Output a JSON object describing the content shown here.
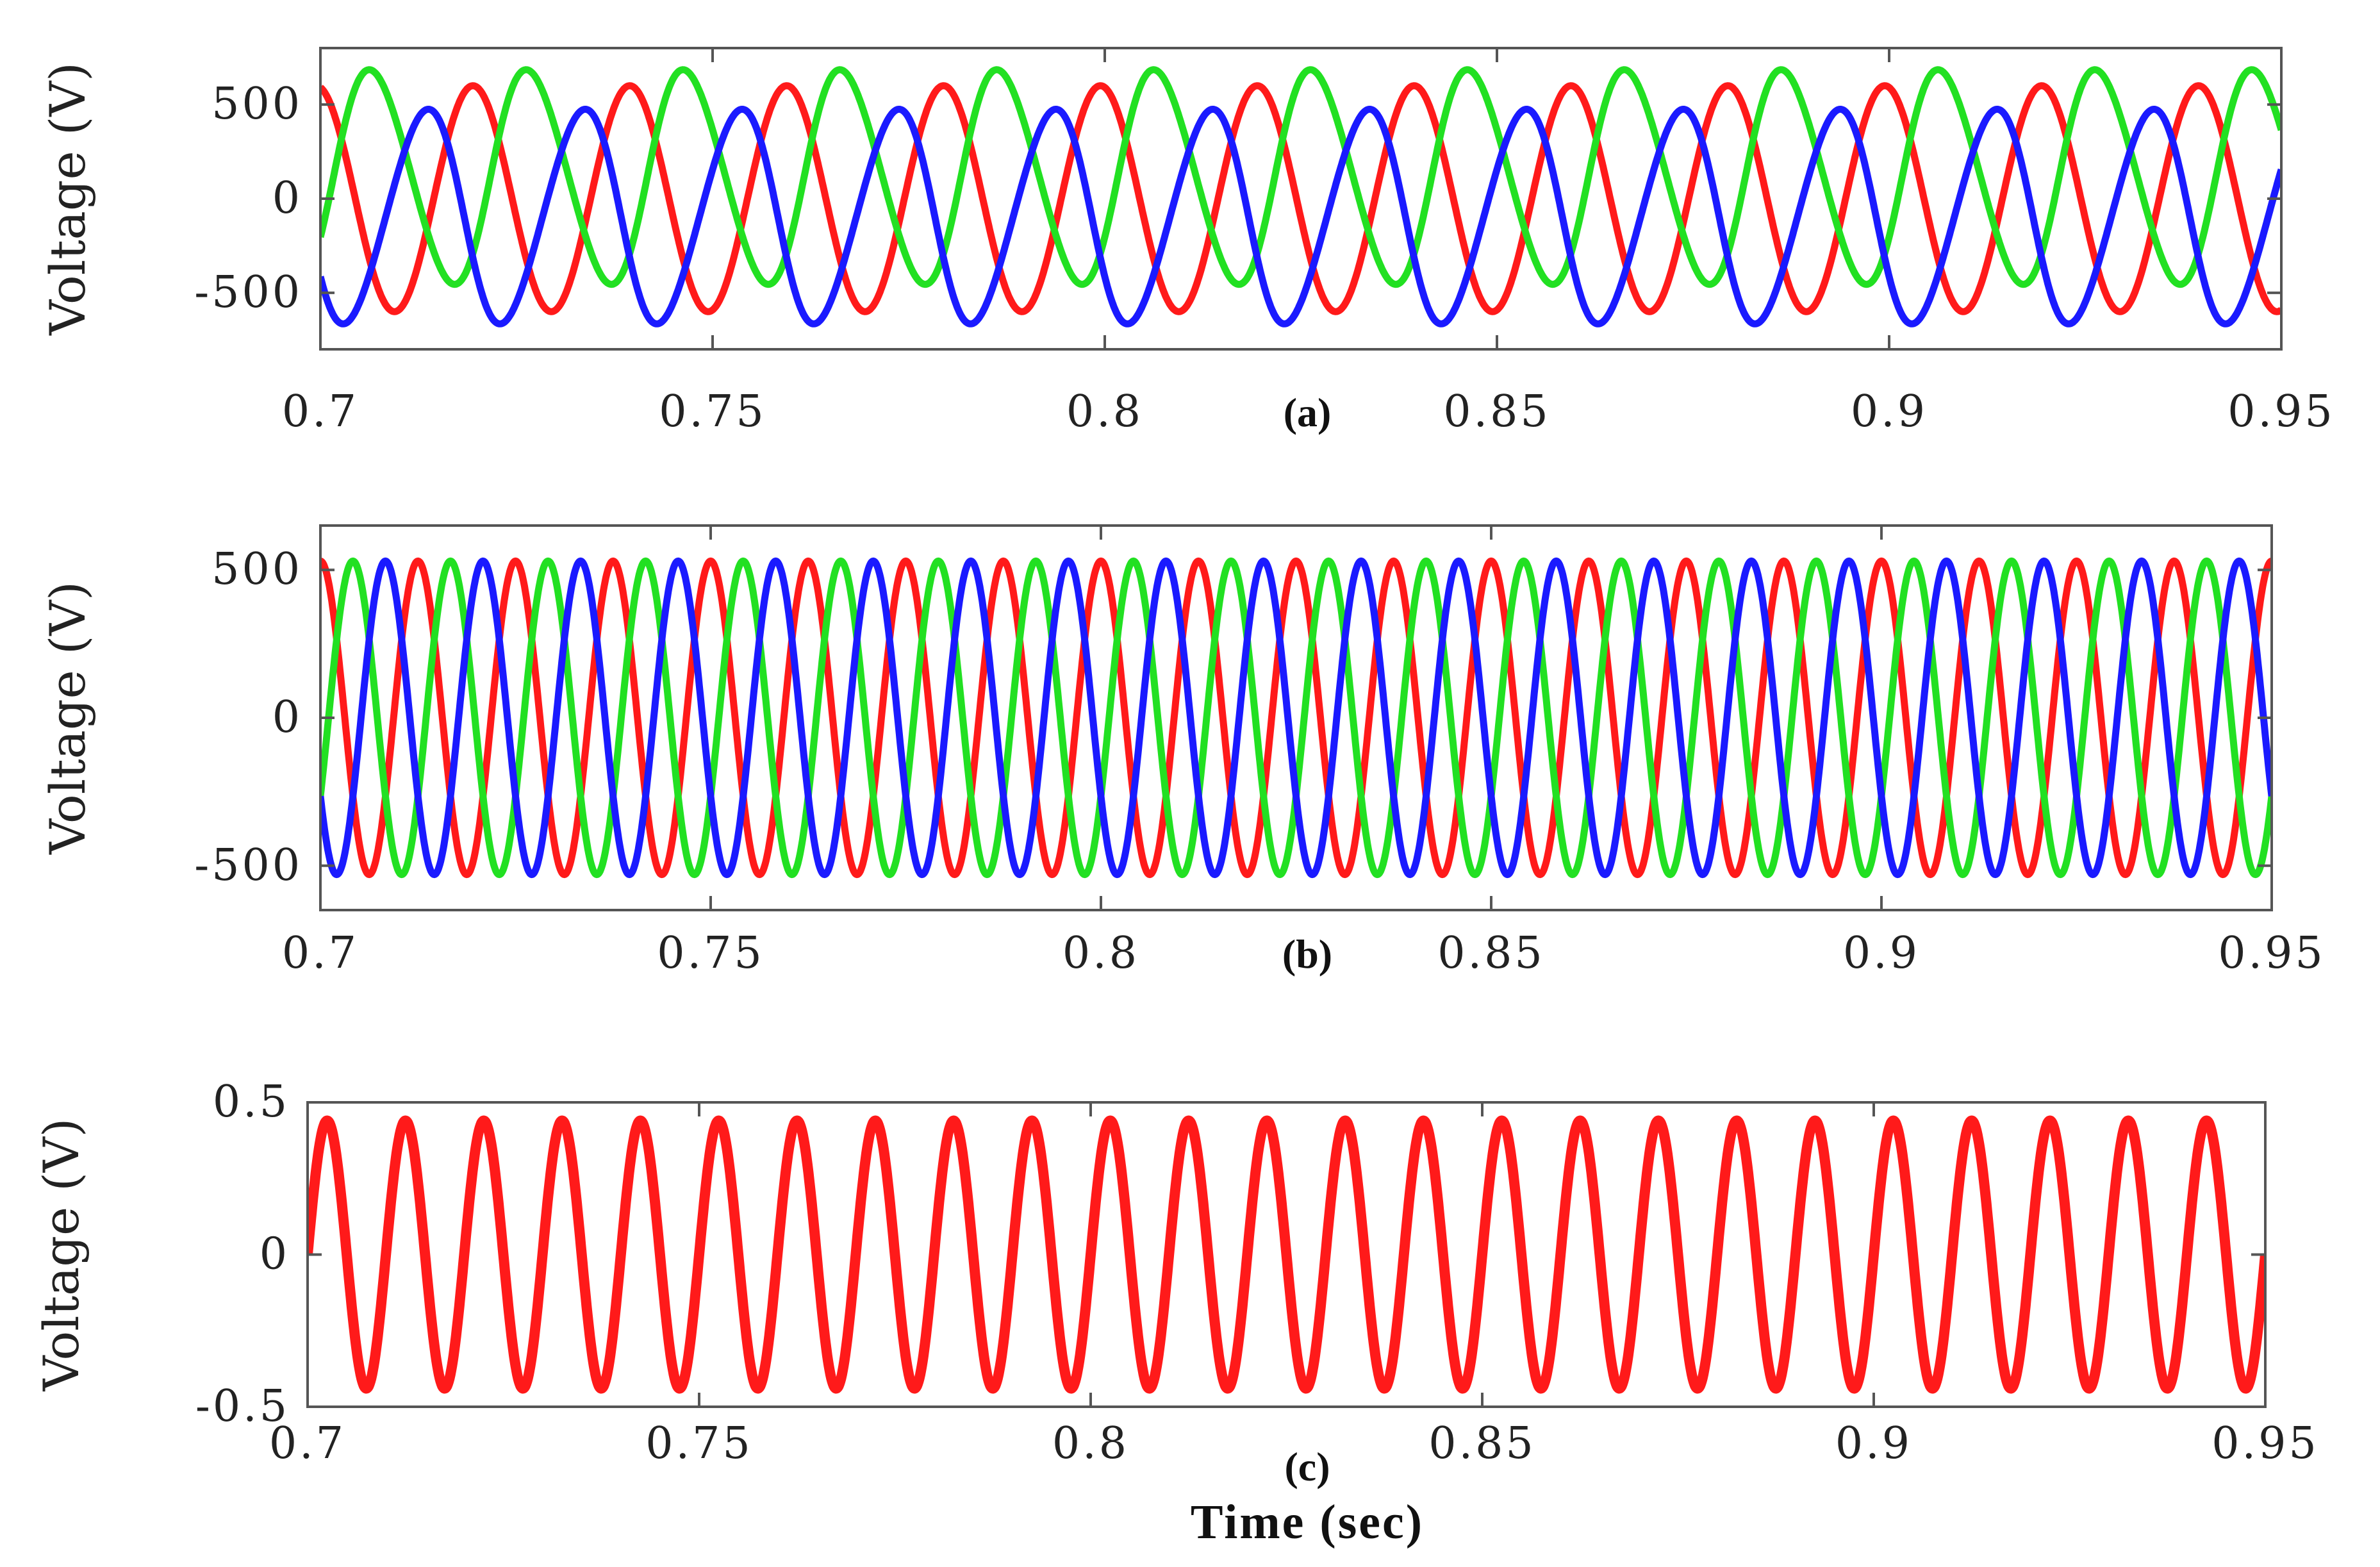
{
  "chart_data": [
    {
      "type": "line",
      "panel_label": "(a)",
      "ylabel": "Voltage (V)",
      "xlabel": "",
      "xlim": [
        0.7,
        0.95
      ],
      "ylim": [
        -800,
        800
      ],
      "x_ticks": [
        "0.7",
        "0.75",
        "0.8",
        "0.85",
        "0.9",
        "0.95"
      ],
      "y_ticks": [
        "500",
        "0",
        "-500"
      ],
      "y_tick_values": [
        500,
        0,
        -500
      ],
      "grid": false,
      "series": [
        {
          "color": "#ff1a1a",
          "kind": "sine",
          "frequency_hz": 50,
          "amplitude": 600,
          "offset": 0,
          "phase_deg": 100
        },
        {
          "color": "#22e022",
          "kind": "sine",
          "frequency_hz": 50,
          "amplitude": 570,
          "offset": 115,
          "phase_deg": -30,
          "distortion": 0.14
        },
        {
          "color": "#1a1aff",
          "kind": "sine",
          "frequency_hz": 50,
          "amplitude": 570,
          "offset": -95,
          "phase_deg": -150,
          "distortion": -0.14
        }
      ]
    },
    {
      "type": "line",
      "panel_label": "(b)",
      "ylabel": "Voltage (V)",
      "xlabel": "",
      "xlim": [
        0.7,
        0.95
      ],
      "ylim": [
        -650,
        650
      ],
      "x_ticks": [
        "0.7",
        "0.75",
        "0.8",
        "0.85",
        "0.9",
        "0.95"
      ],
      "y_ticks": [
        "500",
        "0",
        "-500"
      ],
      "y_tick_values": [
        500,
        0,
        -500
      ],
      "grid": false,
      "series": [
        {
          "color": "#ff1a1a",
          "kind": "sine",
          "frequency_hz": 80,
          "amplitude": 530,
          "offset": 0,
          "phase_deg": 90
        },
        {
          "color": "#22e022",
          "kind": "sine",
          "frequency_hz": 80,
          "amplitude": 530,
          "offset": 0,
          "phase_deg": -30
        },
        {
          "color": "#1a1aff",
          "kind": "sine",
          "frequency_hz": 80,
          "amplitude": 530,
          "offset": 0,
          "phase_deg": -150
        }
      ]
    },
    {
      "type": "line",
      "panel_label": "(c)",
      "ylabel": "Voltage (V)",
      "xlabel": "Time (sec)",
      "xlim": [
        0.7,
        0.95
      ],
      "ylim": [
        -0.5,
        0.5
      ],
      "x_ticks": [
        "0.7",
        "0.75",
        "0.8",
        "0.85",
        "0.9",
        "0.95"
      ],
      "y_ticks": [
        "0.5",
        "0",
        "-0.5"
      ],
      "y_tick_values": [
        0.5,
        0,
        -0.5
      ],
      "grid": false,
      "series": [
        {
          "color": "#ff1a1a",
          "kind": "sine",
          "frequency_hz": 100,
          "amplitude": 0.44,
          "offset": 0,
          "phase_deg": 0
        }
      ]
    }
  ]
}
